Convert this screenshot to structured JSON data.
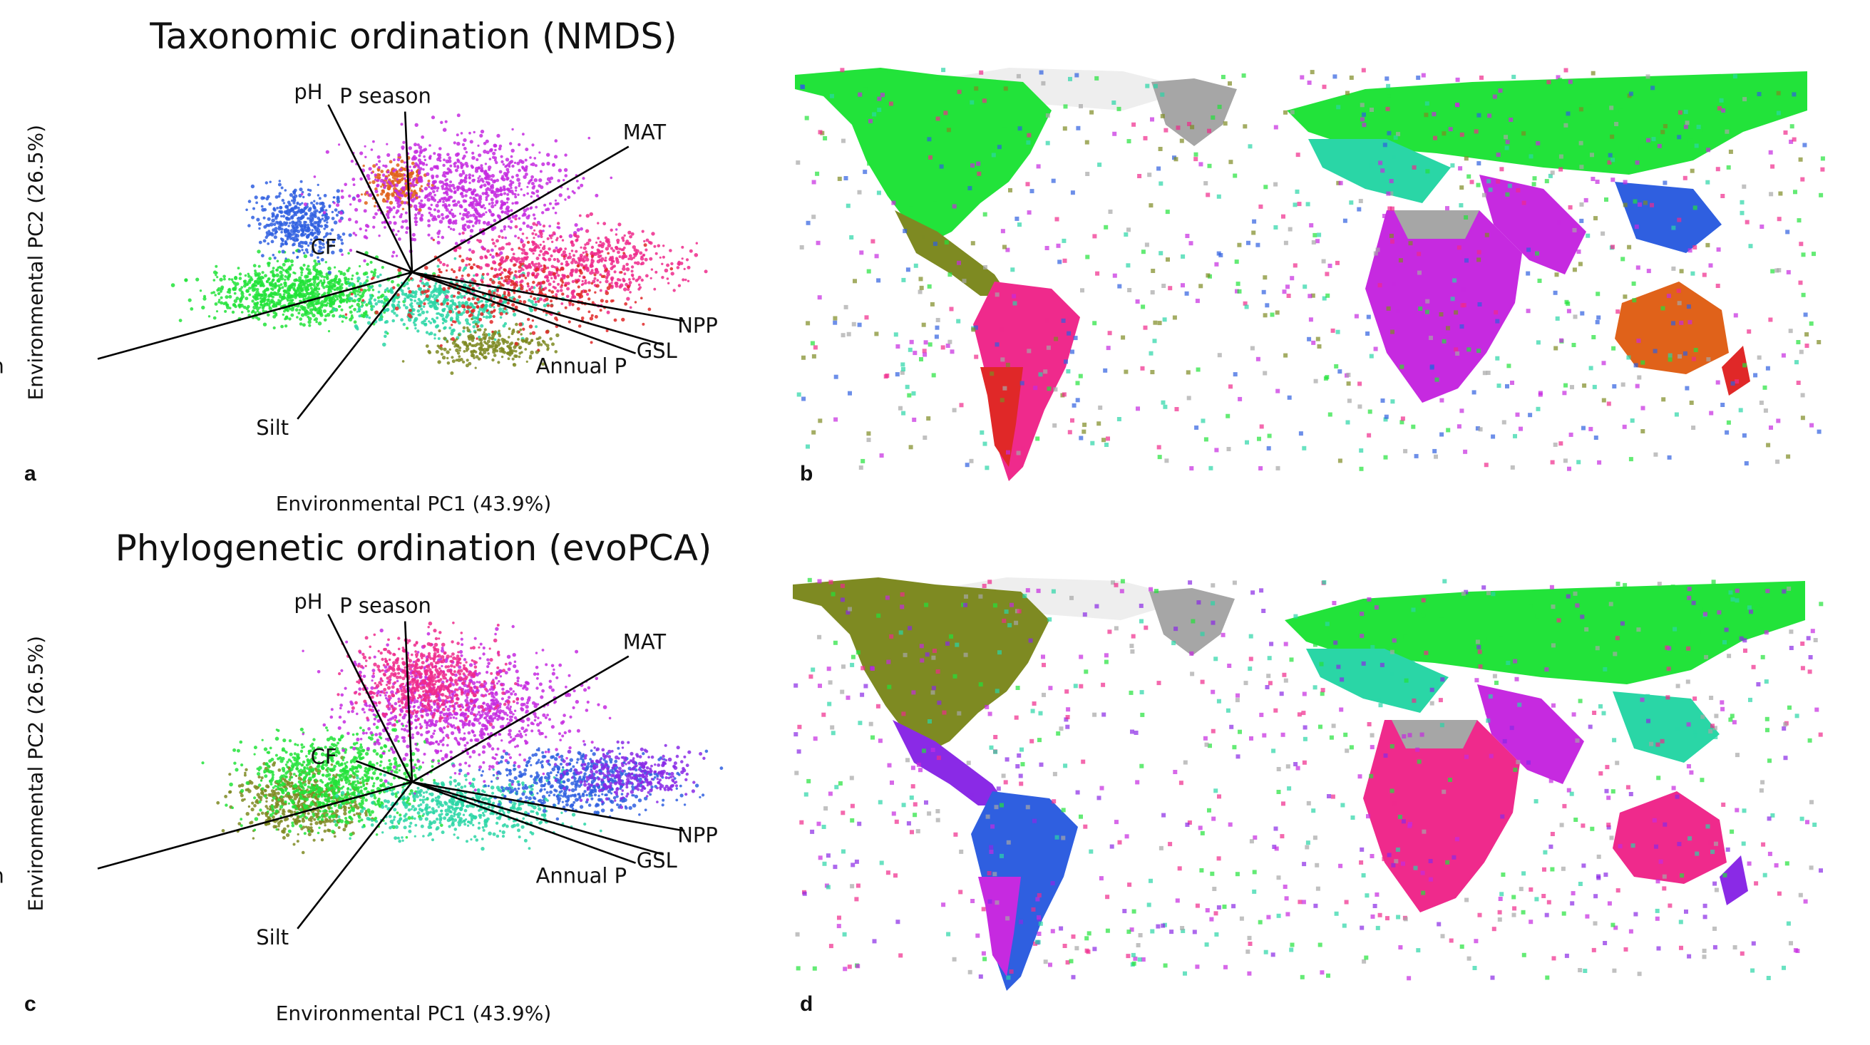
{
  "panels": [
    {
      "letter": "a",
      "title": "Taxonomic ordination (NMDS)",
      "xlabel": "Environmental PC1 (43.9%)",
      "ylabel": "Environmental PC2 (26.5%)"
    },
    {
      "letter": "b"
    },
    {
      "letter": "c",
      "title": "Phylogenetic ordination (evoPCA)",
      "xlabel": "Environmental PC1 (43.9%)",
      "ylabel": "Environmental PC2 (26.5%)"
    },
    {
      "letter": "d"
    }
  ],
  "chart_data": [
    {
      "type": "scatter",
      "title": "Taxonomic ordination (NMDS)",
      "xlabel": "Environmental PC1 (43.9%)",
      "ylabel": "Environmental PC2 (26.5%)",
      "biplot_vectors": [
        {
          "name": "pH",
          "dx": -0.6,
          "dy": 1.2
        },
        {
          "name": "P season",
          "dx": -0.05,
          "dy": 1.15
        },
        {
          "name": "MAT",
          "dx": 1.55,
          "dy": 0.9
        },
        {
          "name": "CF",
          "dx": -0.4,
          "dy": 0.15
        },
        {
          "name": "NPP",
          "dx": 1.95,
          "dy": -0.35
        },
        {
          "name": "GSL",
          "dx": 1.8,
          "dy": -0.52
        },
        {
          "name": "Annual P",
          "dx": 1.6,
          "dy": -0.58
        },
        {
          "name": "T season",
          "dx": -2.25,
          "dy": -0.62
        },
        {
          "name": "Silt",
          "dx": -0.82,
          "dy": -1.05
        }
      ],
      "point_color_groups": [
        "green",
        "blue",
        "orange",
        "magenta",
        "pink",
        "red",
        "teal",
        "olive"
      ]
    },
    {
      "type": "heatmap",
      "description_colors": [
        "green",
        "olive",
        "red",
        "magenta",
        "blue",
        "orange",
        "grey"
      ]
    },
    {
      "type": "scatter",
      "title": "Phylogenetic ordination (evoPCA)",
      "xlabel": "Environmental PC1 (43.9%)",
      "ylabel": "Environmental PC2 (26.5%)",
      "biplot_vectors": [
        {
          "name": "pH",
          "dx": -0.6,
          "dy": 1.2
        },
        {
          "name": "P season",
          "dx": -0.05,
          "dy": 1.15
        },
        {
          "name": "MAT",
          "dx": 1.55,
          "dy": 0.9
        },
        {
          "name": "CF",
          "dx": -0.4,
          "dy": 0.15
        },
        {
          "name": "NPP",
          "dx": 1.95,
          "dy": -0.35
        },
        {
          "name": "GSL",
          "dx": 1.8,
          "dy": -0.52
        },
        {
          "name": "Annual P",
          "dx": 1.6,
          "dy": -0.58
        },
        {
          "name": "T season",
          "dx": -2.25,
          "dy": -0.62
        },
        {
          "name": "Silt",
          "dx": -0.82,
          "dy": -1.05
        }
      ],
      "point_color_groups": [
        "olive",
        "green",
        "teal",
        "magenta",
        "pink",
        "blue",
        "purple"
      ]
    },
    {
      "type": "heatmap",
      "description_colors": [
        "olive",
        "green",
        "teal",
        "magenta",
        "blue",
        "purple",
        "grey"
      ]
    }
  ]
}
